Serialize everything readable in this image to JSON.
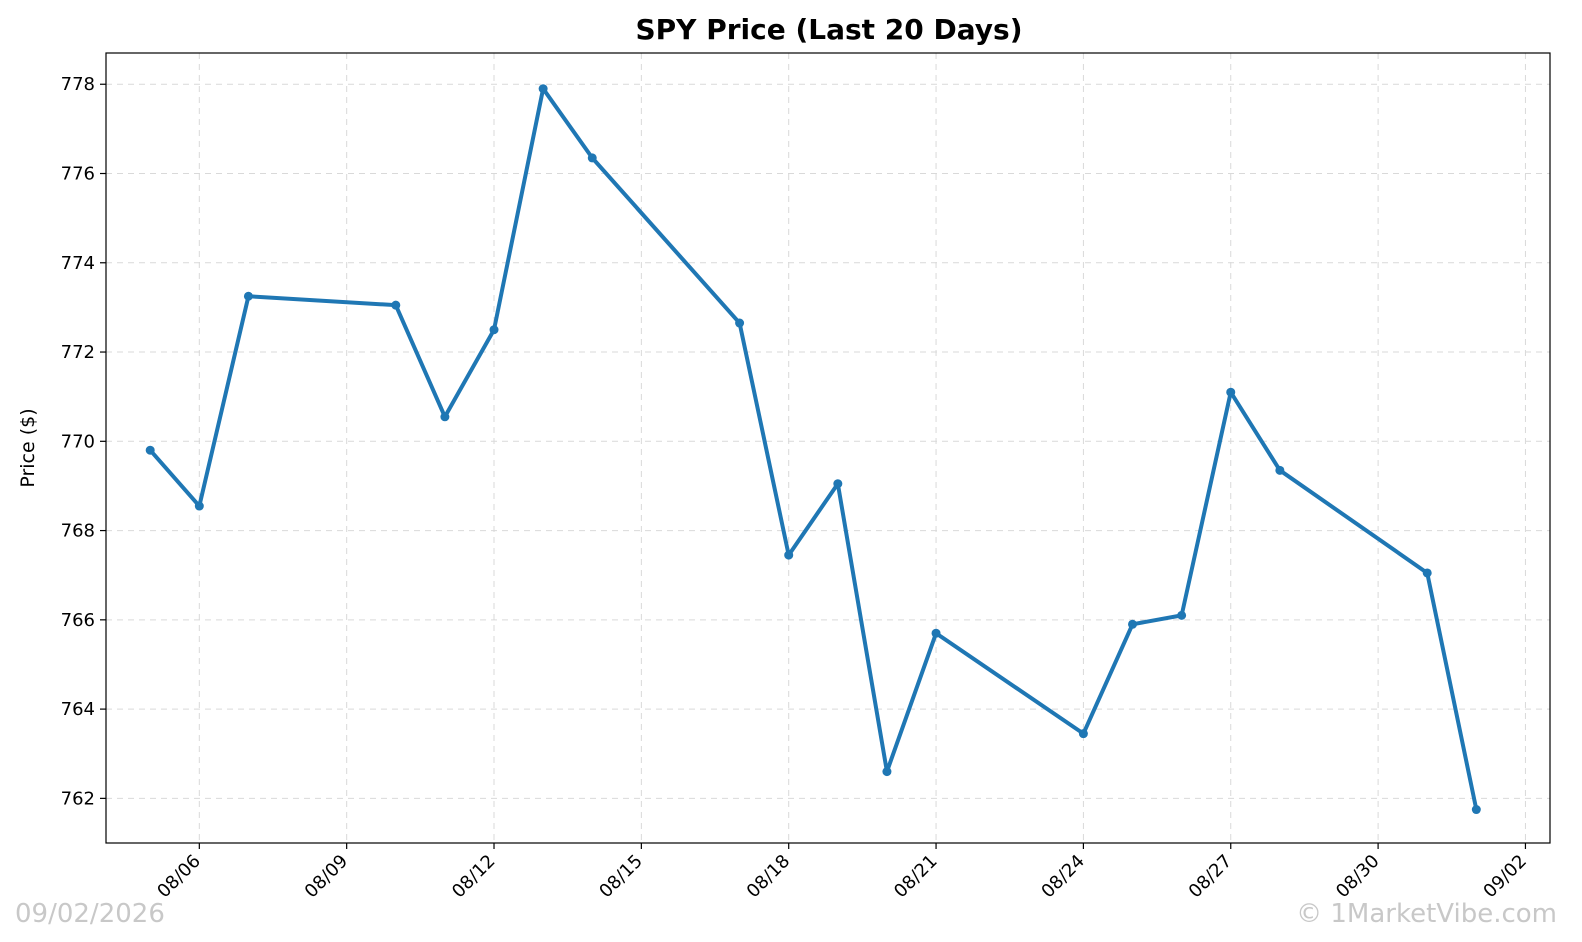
{
  "chart_data": {
    "type": "line",
    "title": "SPY Price (Last 20 Days)",
    "xlabel": "",
    "ylabel": "Price ($)",
    "x": [
      "2026-08-05",
      "2026-08-06",
      "2026-08-07",
      "2026-08-10",
      "2026-08-11",
      "2026-08-12",
      "2026-08-13",
      "2026-08-14",
      "2026-08-17",
      "2026-08-18",
      "2026-08-19",
      "2026-08-20",
      "2026-08-21",
      "2026-08-24",
      "2026-08-25",
      "2026-08-26",
      "2026-08-27",
      "2026-08-28",
      "2026-08-31",
      "2026-09-01"
    ],
    "series": [
      {
        "values": [
          769.8,
          768.55,
          773.25,
          773.05,
          770.55,
          772.5,
          777.9,
          776.35,
          772.65,
          767.45,
          769.05,
          762.6,
          765.7,
          763.45,
          765.9,
          766.1,
          771.1,
          769.35,
          767.05,
          761.75
        ]
      }
    ],
    "xticks": [
      "08/06",
      "08/09",
      "08/12",
      "08/15",
      "08/18",
      "08/21",
      "08/24",
      "08/27",
      "08/30",
      "09/02"
    ],
    "xtick_dates": [
      "2026-08-06",
      "2026-08-09",
      "2026-08-12",
      "2026-08-15",
      "2026-08-18",
      "2026-08-21",
      "2026-08-24",
      "2026-08-27",
      "2026-08-30",
      "2026-09-02"
    ],
    "yticks": [
      762,
      764,
      766,
      768,
      770,
      772,
      774,
      776,
      778
    ],
    "xlim": [
      "2026-08-04",
      "2026-09-02"
    ],
    "ylim": [
      761,
      778.7
    ],
    "grid": true,
    "line_color": "#1f77b4"
  },
  "watermark_left": "09/02/2026",
  "watermark_right": "© 1MarketVibe.com"
}
